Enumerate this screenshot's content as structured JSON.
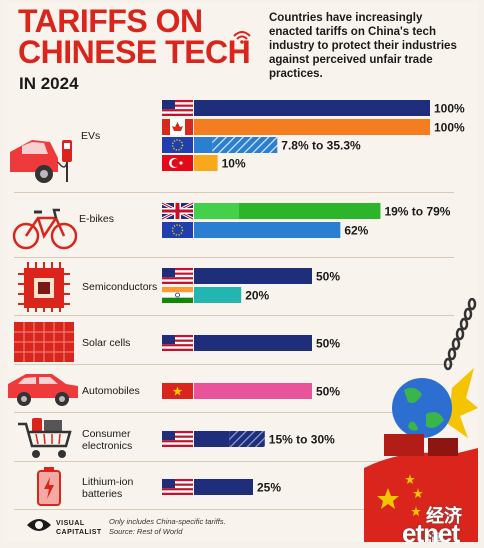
{
  "header": {
    "title_line1": "TARIFFS ON",
    "title_line2": "CHINESE TECH",
    "year": "IN 2024",
    "description": "Countries have increasingly enacted tariffs on China's tech industry to protect their industries against perceived unfair trade practices."
  },
  "chart_data": {
    "type": "bar",
    "orientation": "horizontal",
    "title": "TARIFFS ON CHINESE TECH IN 2024",
    "xlim": [
      0,
      100
    ],
    "unit": "%",
    "groups": [
      {
        "category": "EVs",
        "bars": [
          {
            "country": "United States",
            "flag": "us-flag",
            "value": 100,
            "label": "100%",
            "color": "#1f2e7a"
          },
          {
            "country": "Canada",
            "flag": "canada-flag",
            "value": 100,
            "label": "100%",
            "color": "#f47d20"
          },
          {
            "country": "European Union",
            "flag": "eu-flag",
            "value_min": 7.8,
            "value": 35.3,
            "label": "7.8% to 35.3%",
            "color": "#2a7fd1"
          },
          {
            "country": "Turkey",
            "flag": "turkey-flag",
            "value": 10,
            "label": "10%",
            "color": "#f7a81b"
          }
        ]
      },
      {
        "category": "E-bikes",
        "bars": [
          {
            "country": "United Kingdom",
            "flag": "uk-flag",
            "value_min": 19,
            "value": 79,
            "label": "19% to 79%",
            "color": "#3cc43a"
          },
          {
            "country": "European Union",
            "flag": "eu-flag",
            "value": 62,
            "label": "62%",
            "color": "#2a7fd1"
          }
        ]
      },
      {
        "category": "Semiconductors",
        "bars": [
          {
            "country": "United States",
            "flag": "us-flag",
            "value": 50,
            "label": "50%",
            "color": "#1f2e7a"
          },
          {
            "country": "India",
            "flag": "india-flag",
            "value": 20,
            "label": "20%",
            "color": "#23b5b0"
          }
        ]
      },
      {
        "category": "Solar cells",
        "bars": [
          {
            "country": "United States",
            "flag": "us-flag",
            "value": 50,
            "label": "50%",
            "color": "#1f2e7a"
          }
        ]
      },
      {
        "category": "Automobiles",
        "bars": [
          {
            "country": "Vietnam",
            "flag": "vietnam-flag",
            "value": 50,
            "label": "50%",
            "color": "#e8539c"
          }
        ]
      },
      {
        "category": "Consumer electronics",
        "bars": [
          {
            "country": "United States",
            "flag": "us-flag",
            "value_min": 15,
            "value": 30,
            "label": "15% to 30%",
            "color": "#1f2e7a"
          }
        ]
      },
      {
        "category": "Lithium-ion batteries",
        "bars": [
          {
            "country": "United States",
            "flag": "us-flag",
            "value": 25,
            "label": "25%",
            "color": "#1f2e7a"
          }
        ]
      }
    ]
  },
  "labels": {
    "evs": "EVs",
    "ebikes": "E-bikes",
    "semiconductors": "Semiconductors",
    "solar": "Solar cells",
    "automobiles": "Automobiles",
    "consumer_line1": "Consumer",
    "consumer_line2": "electronics",
    "lithium_line1": "Lithium-ion",
    "lithium_line2": "batteries"
  },
  "footer": {
    "logo_line1": "VISUAL",
    "logo_line2": "CAPITALIST",
    "note_line1": "Only includes China-specific tariffs.",
    "note_line2": "Source: Rest of World"
  },
  "watermark": {
    "cn": "经济通",
    "en": "etnet"
  }
}
